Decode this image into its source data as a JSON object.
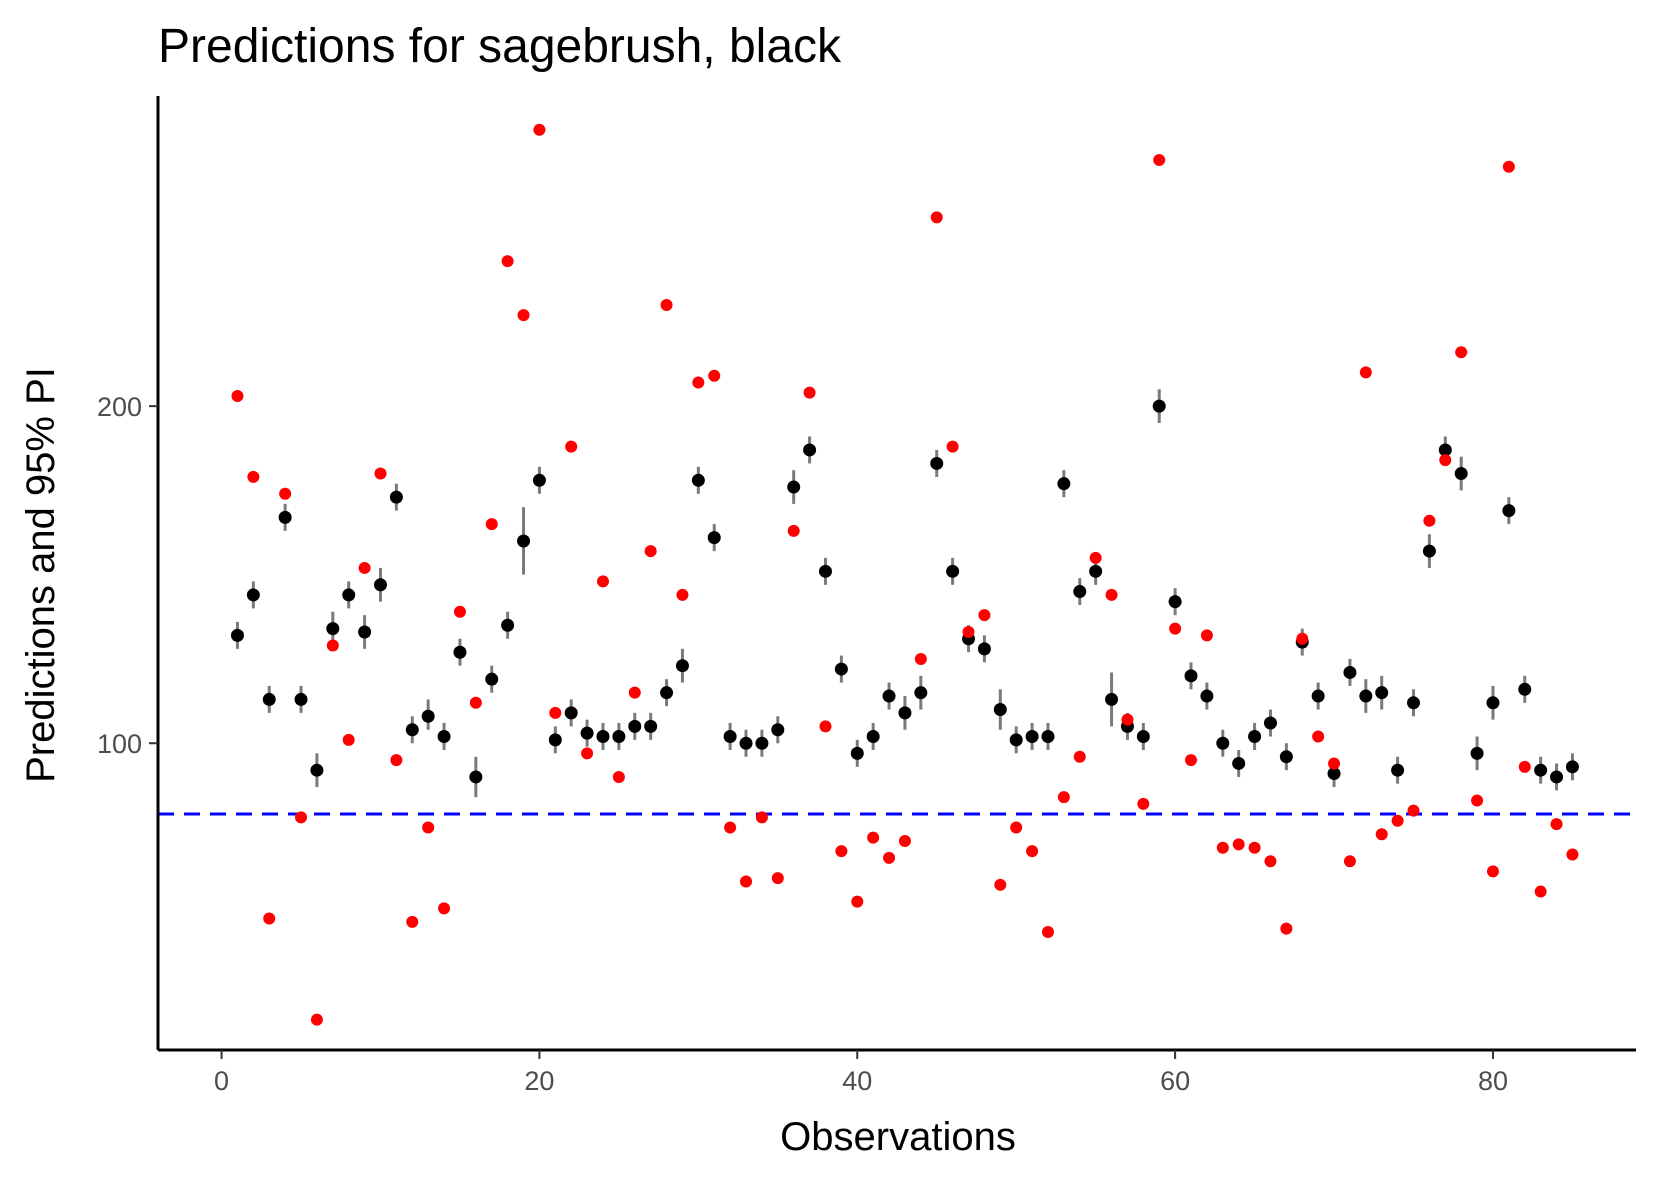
{
  "chart_data": {
    "type": "scatter",
    "title": "Predictions for sagebrush, black",
    "xlabel": "Observations",
    "ylabel": "Predictions and 95% PI",
    "xlim": [
      -4,
      89
    ],
    "ylim": [
      9,
      292
    ],
    "x_ticks": [
      0,
      20,
      40,
      60,
      80
    ],
    "y_ticks": [
      100,
      200
    ],
    "x_tick_labels": [
      "0",
      "20",
      "40",
      "60",
      "80"
    ],
    "y_tick_labels": [
      "100",
      "200"
    ],
    "grid": false,
    "legend": "none",
    "reference_line": {
      "y": 79,
      "style": "dashed",
      "color": "#0000ff"
    },
    "colors": {
      "prediction": "#000000",
      "interval": "#7a7a7a",
      "observed": "#ff0000"
    },
    "series": [
      {
        "kind": "prediction_with_interval",
        "points": [
          [
            1,
            132,
            128,
            136
          ],
          [
            2,
            144,
            140,
            148
          ],
          [
            3,
            113,
            109,
            117
          ],
          [
            4,
            167,
            163,
            171
          ],
          [
            5,
            113,
            109,
            117
          ],
          [
            6,
            92,
            87,
            97
          ],
          [
            7,
            134,
            129,
            139
          ],
          [
            8,
            144,
            140,
            148
          ],
          [
            9,
            133,
            128,
            138
          ],
          [
            10,
            147,
            142,
            152
          ],
          [
            11,
            173,
            169,
            177
          ],
          [
            12,
            104,
            100,
            108
          ],
          [
            13,
            108,
            104,
            113
          ],
          [
            14,
            102,
            98,
            106
          ],
          [
            15,
            127,
            123,
            131
          ],
          [
            16,
            90,
            84,
            96
          ],
          [
            17,
            119,
            115,
            123
          ],
          [
            18,
            135,
            131,
            139
          ],
          [
            19,
            160,
            150,
            170
          ],
          [
            20,
            178,
            174,
            182
          ],
          [
            21,
            101,
            97,
            105
          ],
          [
            22,
            109,
            105,
            113
          ],
          [
            23,
            103,
            99,
            107
          ],
          [
            24,
            102,
            98,
            106
          ],
          [
            25,
            102,
            98,
            106
          ],
          [
            26,
            105,
            101,
            109
          ],
          [
            27,
            105,
            101,
            109
          ],
          [
            28,
            115,
            111,
            119
          ],
          [
            29,
            123,
            118,
            128
          ],
          [
            30,
            178,
            174,
            182
          ],
          [
            31,
            161,
            157,
            165
          ],
          [
            32,
            102,
            98,
            106
          ],
          [
            33,
            100,
            96,
            104
          ],
          [
            34,
            100,
            96,
            104
          ],
          [
            35,
            104,
            100,
            108
          ],
          [
            36,
            176,
            171,
            181
          ],
          [
            37,
            187,
            183,
            191
          ],
          [
            38,
            151,
            147,
            155
          ],
          [
            39,
            122,
            118,
            126
          ],
          [
            40,
            97,
            93,
            101
          ],
          [
            41,
            102,
            98,
            106
          ],
          [
            42,
            114,
            110,
            118
          ],
          [
            43,
            109,
            104,
            114
          ],
          [
            44,
            115,
            110,
            120
          ],
          [
            45,
            183,
            179,
            187
          ],
          [
            46,
            151,
            147,
            155
          ],
          [
            47,
            131,
            127,
            135
          ],
          [
            48,
            128,
            124,
            132
          ],
          [
            49,
            110,
            104,
            116
          ],
          [
            50,
            101,
            97,
            105
          ],
          [
            51,
            102,
            98,
            106
          ],
          [
            52,
            102,
            98,
            106
          ],
          [
            53,
            177,
            173,
            181
          ],
          [
            54,
            145,
            141,
            149
          ],
          [
            55,
            151,
            147,
            155
          ],
          [
            56,
            113,
            105,
            121
          ],
          [
            57,
            105,
            101,
            109
          ],
          [
            58,
            102,
            98,
            106
          ],
          [
            59,
            200,
            195,
            205
          ],
          [
            60,
            142,
            138,
            146
          ],
          [
            61,
            120,
            116,
            124
          ],
          [
            62,
            114,
            110,
            118
          ],
          [
            63,
            100,
            96,
            104
          ],
          [
            64,
            94,
            90,
            98
          ],
          [
            65,
            102,
            98,
            106
          ],
          [
            66,
            106,
            102,
            110
          ],
          [
            67,
            96,
            92,
            100
          ],
          [
            68,
            130,
            126,
            134
          ],
          [
            69,
            114,
            110,
            118
          ],
          [
            70,
            91,
            87,
            95
          ],
          [
            71,
            121,
            117,
            125
          ],
          [
            72,
            114,
            109,
            119
          ],
          [
            73,
            115,
            110,
            120
          ],
          [
            74,
            92,
            88,
            96
          ],
          [
            75,
            112,
            108,
            116
          ],
          [
            76,
            157,
            152,
            162
          ],
          [
            77,
            187,
            183,
            191
          ],
          [
            78,
            180,
            175,
            185
          ],
          [
            79,
            97,
            92,
            102
          ],
          [
            80,
            112,
            107,
            117
          ],
          [
            81,
            169,
            165,
            173
          ],
          [
            82,
            116,
            112,
            120
          ],
          [
            83,
            92,
            88,
            96
          ],
          [
            84,
            90,
            86,
            94
          ],
          [
            85,
            93,
            89,
            97
          ]
        ]
      },
      {
        "kind": "observed",
        "points": [
          [
            1,
            203
          ],
          [
            2,
            179
          ],
          [
            3,
            48
          ],
          [
            4,
            174
          ],
          [
            5,
            78
          ],
          [
            6,
            18
          ],
          [
            7,
            129
          ],
          [
            8,
            101
          ],
          [
            9,
            152
          ],
          [
            10,
            180
          ],
          [
            11,
            95
          ],
          [
            12,
            47
          ],
          [
            13,
            75
          ],
          [
            14,
            51
          ],
          [
            15,
            139
          ],
          [
            16,
            112
          ],
          [
            17,
            165
          ],
          [
            18,
            243
          ],
          [
            19,
            227
          ],
          [
            20,
            282
          ],
          [
            21,
            109
          ],
          [
            22,
            188
          ],
          [
            23,
            97
          ],
          [
            24,
            148
          ],
          [
            25,
            90
          ],
          [
            26,
            115
          ],
          [
            27,
            157
          ],
          [
            28,
            230
          ],
          [
            29,
            144
          ],
          [
            30,
            207
          ],
          [
            31,
            209
          ],
          [
            32,
            75
          ],
          [
            33,
            59
          ],
          [
            34,
            78
          ],
          [
            35,
            60
          ],
          [
            36,
            163
          ],
          [
            37,
            204
          ],
          [
            38,
            105
          ],
          [
            39,
            68
          ],
          [
            40,
            53
          ],
          [
            41,
            72
          ],
          [
            42,
            66
          ],
          [
            43,
            71
          ],
          [
            44,
            125
          ],
          [
            45,
            256
          ],
          [
            46,
            188
          ],
          [
            47,
            133
          ],
          [
            48,
            138
          ],
          [
            49,
            58
          ],
          [
            50,
            75
          ],
          [
            51,
            68
          ],
          [
            52,
            44
          ],
          [
            53,
            84
          ],
          [
            54,
            96
          ],
          [
            55,
            155
          ],
          [
            56,
            144
          ],
          [
            57,
            107
          ],
          [
            58,
            82
          ],
          [
            59,
            273
          ],
          [
            60,
            134
          ],
          [
            61,
            95
          ],
          [
            62,
            132
          ],
          [
            63,
            69
          ],
          [
            64,
            70
          ],
          [
            65,
            69
          ],
          [
            66,
            65
          ],
          [
            67,
            45
          ],
          [
            68,
            131
          ],
          [
            69,
            102
          ],
          [
            70,
            94
          ],
          [
            71,
            65
          ],
          [
            72,
            210
          ],
          [
            73,
            73
          ],
          [
            74,
            77
          ],
          [
            75,
            80
          ],
          [
            76,
            166
          ],
          [
            77,
            184
          ],
          [
            78,
            216
          ],
          [
            79,
            83
          ],
          [
            80,
            62
          ],
          [
            81,
            271
          ],
          [
            82,
            93
          ],
          [
            83,
            56
          ],
          [
            84,
            76
          ],
          [
            85,
            67
          ]
        ]
      }
    ]
  }
}
